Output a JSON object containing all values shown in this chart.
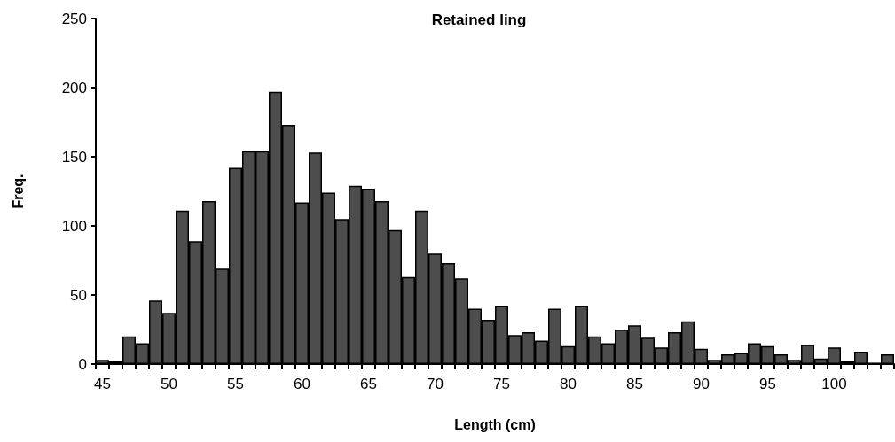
{
  "chart_data": {
    "type": "bar",
    "title": "Retained ling",
    "xlabel": "Length (cm)",
    "ylabel": "Freq.",
    "categories": [
      "45",
      null,
      null,
      null,
      null,
      "50",
      null,
      null,
      null,
      null,
      "55",
      null,
      null,
      null,
      null,
      "60",
      null,
      null,
      null,
      null,
      "65",
      null,
      null,
      null,
      null,
      "70",
      null,
      null,
      null,
      null,
      "75",
      null,
      null,
      null,
      null,
      "80",
      null,
      null,
      null,
      null,
      "85",
      null,
      null,
      null,
      null,
      "90",
      null,
      null,
      null,
      null,
      "95",
      null,
      null,
      null,
      null,
      "100",
      null,
      null,
      null,
      null
    ],
    "values": [
      3,
      2,
      20,
      15,
      46,
      37,
      111,
      89,
      118,
      69,
      142,
      154,
      154,
      197,
      173,
      117,
      153,
      124,
      105,
      129,
      127,
      118,
      97,
      63,
      111,
      80,
      73,
      62,
      40,
      32,
      42,
      21,
      23,
      17,
      40,
      13,
      42,
      20,
      15,
      25,
      28,
      19,
      12,
      23,
      31,
      11,
      3,
      7,
      8,
      15,
      13,
      7,
      3,
      14,
      4,
      12,
      2,
      9,
      1,
      7
    ],
    "color": "#4d4d4d",
    "ylim": [
      0,
      250
    ],
    "yticks": [
      0,
      50,
      100,
      150,
      200,
      250
    ],
    "grid": false
  }
}
